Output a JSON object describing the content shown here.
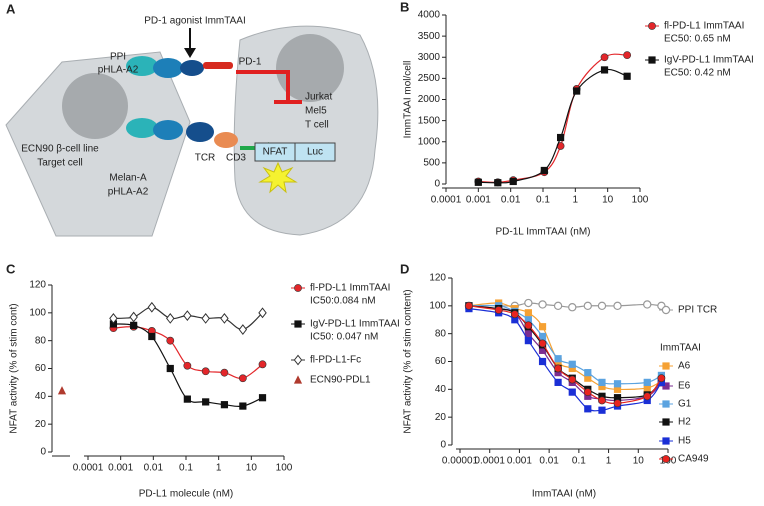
{
  "diagram": {
    "panel": "A",
    "labels": [
      "PD-1 agonist ImmTAAI",
      "PPI",
      "pHLA-A2",
      "PD-1",
      "Jurkat",
      "Mel5",
      "T cell",
      "ECN90 β-cell line",
      "Target cell",
      "NFAT",
      "Luc",
      "Melan-A",
      "pHLA-A2",
      "TCR",
      "CD3"
    ]
  },
  "chart_data": [
    {
      "type": "scatter",
      "panel": "B",
      "xlabel": "PD-1L ImmTAAI (nM)",
      "ylabel": "ImmTAAI mol/cell",
      "xscale": "log",
      "xlim": [
        0.0001,
        100
      ],
      "xticks": [
        0.0001,
        0.001,
        0.01,
        0.1,
        1,
        10,
        100
      ],
      "ylim": [
        0,
        4000
      ],
      "yticks": [
        0,
        500,
        1000,
        1500,
        2000,
        2500,
        3000,
        3500,
        4000
      ],
      "grid": false,
      "x": [
        0.001,
        0.004,
        0.012,
        0.11,
        0.35,
        1.1,
        8,
        40
      ],
      "series": [
        {
          "name": "fl-PD-L1 ImmTAAI",
          "note": "EC50: 0.65 nM",
          "color": "#e3262a",
          "marker": "circle",
          "curve": true,
          "values": [
            60,
            40,
            90,
            280,
            900,
            2250,
            3000,
            3050
          ]
        },
        {
          "name": "IgV-PD-L1 ImmTAAI",
          "note": "EC50: 0.42 nM",
          "color": "#111111",
          "marker": "square",
          "curve": true,
          "values": [
            40,
            30,
            60,
            320,
            1100,
            2200,
            2700,
            2550
          ]
        }
      ]
    },
    {
      "type": "scatter",
      "panel": "C",
      "xlabel": "PD-L1 molecule (nM)",
      "ylabel": "NFAT activity (% of stim cont)",
      "xscale": "log",
      "xlim": [
        0.0001,
        100
      ],
      "xticks": [
        0.0001,
        0.001,
        0.01,
        0.1,
        1,
        10,
        100
      ],
      "ylim": [
        0,
        120
      ],
      "yticks": [
        0,
        20,
        40,
        60,
        80,
        100,
        120
      ],
      "grid": false,
      "x": [
        0.0006,
        0.0025,
        0.009,
        0.033,
        0.11,
        0.4,
        1.5,
        5.5,
        22
      ],
      "series": [
        {
          "name": "fl-PD-L1 ImmTAAI",
          "note": "IC50:0.084 nM",
          "color": "#e3262a",
          "marker": "circle",
          "curve": true,
          "values": [
            89,
            90,
            87,
            80,
            62,
            58,
            57,
            53,
            63
          ]
        },
        {
          "name": "IgV-PD-L1 ImmTAAI",
          "note": "IC50: 0.047 nM",
          "color": "#111111",
          "marker": "square",
          "curve": true,
          "values": [
            92,
            91,
            83,
            60,
            38,
            36,
            34,
            33,
            39
          ]
        },
        {
          "name": "fl-PD-L1-Fc",
          "color": "#333333",
          "marker": "diamond-open",
          "curve": true,
          "values": [
            96,
            97,
            104,
            96,
            98,
            96,
            96,
            88,
            100
          ]
        }
      ],
      "control": {
        "name": "ECN90-PDL1",
        "color": "#b03a2e",
        "marker": "triangle",
        "value": 44
      }
    },
    {
      "type": "scatter",
      "panel": "D",
      "xlabel": "ImmTAAI (nM)",
      "ylabel": "NFAT activity (% of stim content)",
      "xscale": "log",
      "xlim": [
        1e-05,
        100
      ],
      "xticks": [
        1e-05,
        0.0001,
        0.001,
        0.01,
        0.1,
        1,
        10,
        100
      ],
      "ylim": [
        0,
        120
      ],
      "yticks": [
        0,
        20,
        40,
        60,
        80,
        100,
        120
      ],
      "grid": false,
      "legend_title": "ImmTAAI",
      "x": [
        2e-05,
        0.0002,
        0.0007,
        0.002,
        0.006,
        0.02,
        0.06,
        0.2,
        0.6,
        2,
        20,
        60
      ],
      "series": [
        {
          "name": "PPI TCR",
          "color": "#999999",
          "marker": "circle-open",
          "curve": true,
          "values": [
            100,
            100,
            100,
            102,
            101,
            100,
            99,
            100,
            100,
            100,
            101,
            100
          ]
        },
        {
          "name": "A6",
          "color": "#f5a133",
          "marker": "square",
          "curve": true,
          "values": [
            100,
            102,
            98,
            95,
            85,
            60,
            55,
            48,
            42,
            40,
            41,
            46
          ]
        },
        {
          "name": "E6",
          "color": "#7b2c91",
          "marker": "square",
          "curve": true,
          "values": [
            100,
            98,
            95,
            80,
            68,
            52,
            45,
            35,
            33,
            32,
            35,
            45
          ]
        },
        {
          "name": "G1",
          "color": "#5ba3e0",
          "marker": "square",
          "curve": true,
          "values": [
            100,
            100,
            96,
            90,
            78,
            62,
            58,
            52,
            45,
            44,
            45,
            50
          ]
        },
        {
          "name": "H2",
          "color": "#111111",
          "marker": "square",
          "curve": true,
          "values": [
            100,
            98,
            95,
            85,
            72,
            55,
            48,
            40,
            35,
            34,
            36,
            47
          ]
        },
        {
          "name": "H5",
          "color": "#1a2fd6",
          "marker": "square",
          "curve": true,
          "values": [
            98,
            95,
            90,
            75,
            60,
            45,
            38,
            26,
            25,
            28,
            32,
            45
          ]
        },
        {
          "name": "CA949",
          "color": "#e8231f",
          "marker": "circle",
          "curve": true,
          "values": [
            100,
            97,
            94,
            86,
            73,
            55,
            47,
            38,
            32,
            30,
            35,
            48
          ]
        }
      ]
    }
  ]
}
